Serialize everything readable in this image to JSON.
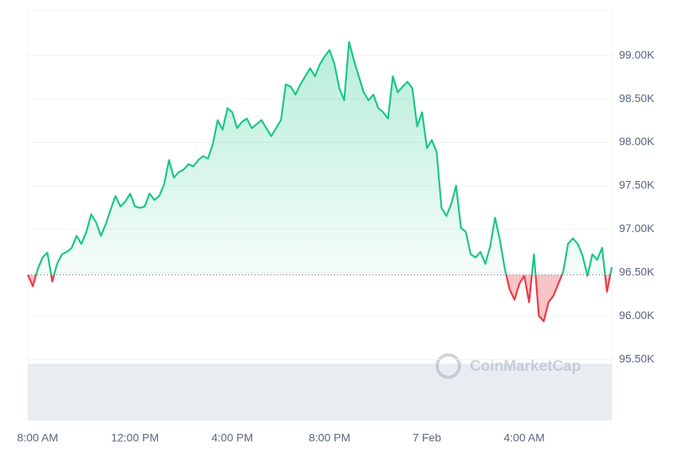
{
  "chart_data": {
    "type": "line",
    "categories": [
      null,
      null,
      "8:00 AM",
      null,
      null,
      null,
      null,
      null,
      null,
      null,
      null,
      null,
      null,
      null,
      null,
      null,
      null,
      null,
      null,
      null,
      null,
      null,
      "12:00 PM",
      null,
      null,
      null,
      null,
      null,
      null,
      null,
      null,
      null,
      null,
      null,
      null,
      null,
      null,
      null,
      null,
      null,
      null,
      null,
      "4:00 PM",
      null,
      null,
      null,
      null,
      null,
      null,
      null,
      null,
      null,
      null,
      null,
      null,
      null,
      null,
      null,
      null,
      null,
      null,
      null,
      "8:00 PM",
      null,
      null,
      null,
      null,
      null,
      null,
      null,
      null,
      null,
      null,
      null,
      null,
      null,
      null,
      null,
      null,
      null,
      null,
      null,
      "7 Feb",
      null,
      null,
      null,
      null,
      null,
      null,
      null,
      null,
      null,
      null,
      null,
      null,
      null,
      null,
      null,
      null,
      null,
      null,
      null,
      "4:00 AM",
      null,
      null,
      null,
      null,
      null,
      null,
      null,
      null,
      null,
      null,
      null,
      null,
      null,
      null,
      null,
      null,
      null,
      null
    ],
    "values": [
      96475,
      96344,
      96537,
      96675,
      96730,
      96399,
      96601,
      96712,
      96739,
      96785,
      96923,
      96831,
      96969,
      97171,
      97079,
      96923,
      97061,
      97226,
      97383,
      97263,
      97318,
      97410,
      97263,
      97245,
      97263,
      97410,
      97337,
      97383,
      97520,
      97796,
      97594,
      97658,
      97686,
      97750,
      97723,
      97796,
      97842,
      97814,
      97980,
      98256,
      98145,
      98393,
      98347,
      98164,
      98237,
      98274,
      98164,
      98210,
      98256,
      98164,
      98072,
      98164,
      98256,
      98669,
      98642,
      98550,
      98669,
      98761,
      98853,
      98761,
      98899,
      98991,
      99064,
      98899,
      98623,
      98485,
      99156,
      98945,
      98761,
      98577,
      98485,
      98550,
      98393,
      98347,
      98274,
      98761,
      98577,
      98642,
      98697,
      98623,
      98182,
      98347,
      97934,
      98026,
      97888,
      97245,
      97153,
      97291,
      97502,
      97015,
      96969,
      96712,
      96675,
      96739,
      96601,
      96804,
      97134,
      96877,
      96546,
      96307,
      96188,
      96372,
      96464,
      96160,
      96712,
      96004,
      95940,
      96160,
      96234,
      96372,
      96509,
      96831,
      96895,
      96831,
      96693,
      96464,
      96712,
      96647,
      96785,
      96280,
      96565
    ],
    "color": "#16c784",
    "negative_color": "#ea3943",
    "ylim": [
      94800,
      99520
    ],
    "yticks": [
      {
        "value": 95500,
        "label": "95.50K"
      },
      {
        "value": 96000,
        "label": "96.00K"
      },
      {
        "value": 96500,
        "label": "96.50K"
      },
      {
        "value": 97000,
        "label": "97.00K"
      },
      {
        "value": 97500,
        "label": "97.50K"
      },
      {
        "value": 98000,
        "label": "98.00K"
      },
      {
        "value": 98500,
        "label": "98.50K"
      },
      {
        "value": 99000,
        "label": "99.00K"
      }
    ],
    "grid": true,
    "watermark": "CoinMarketCap"
  }
}
